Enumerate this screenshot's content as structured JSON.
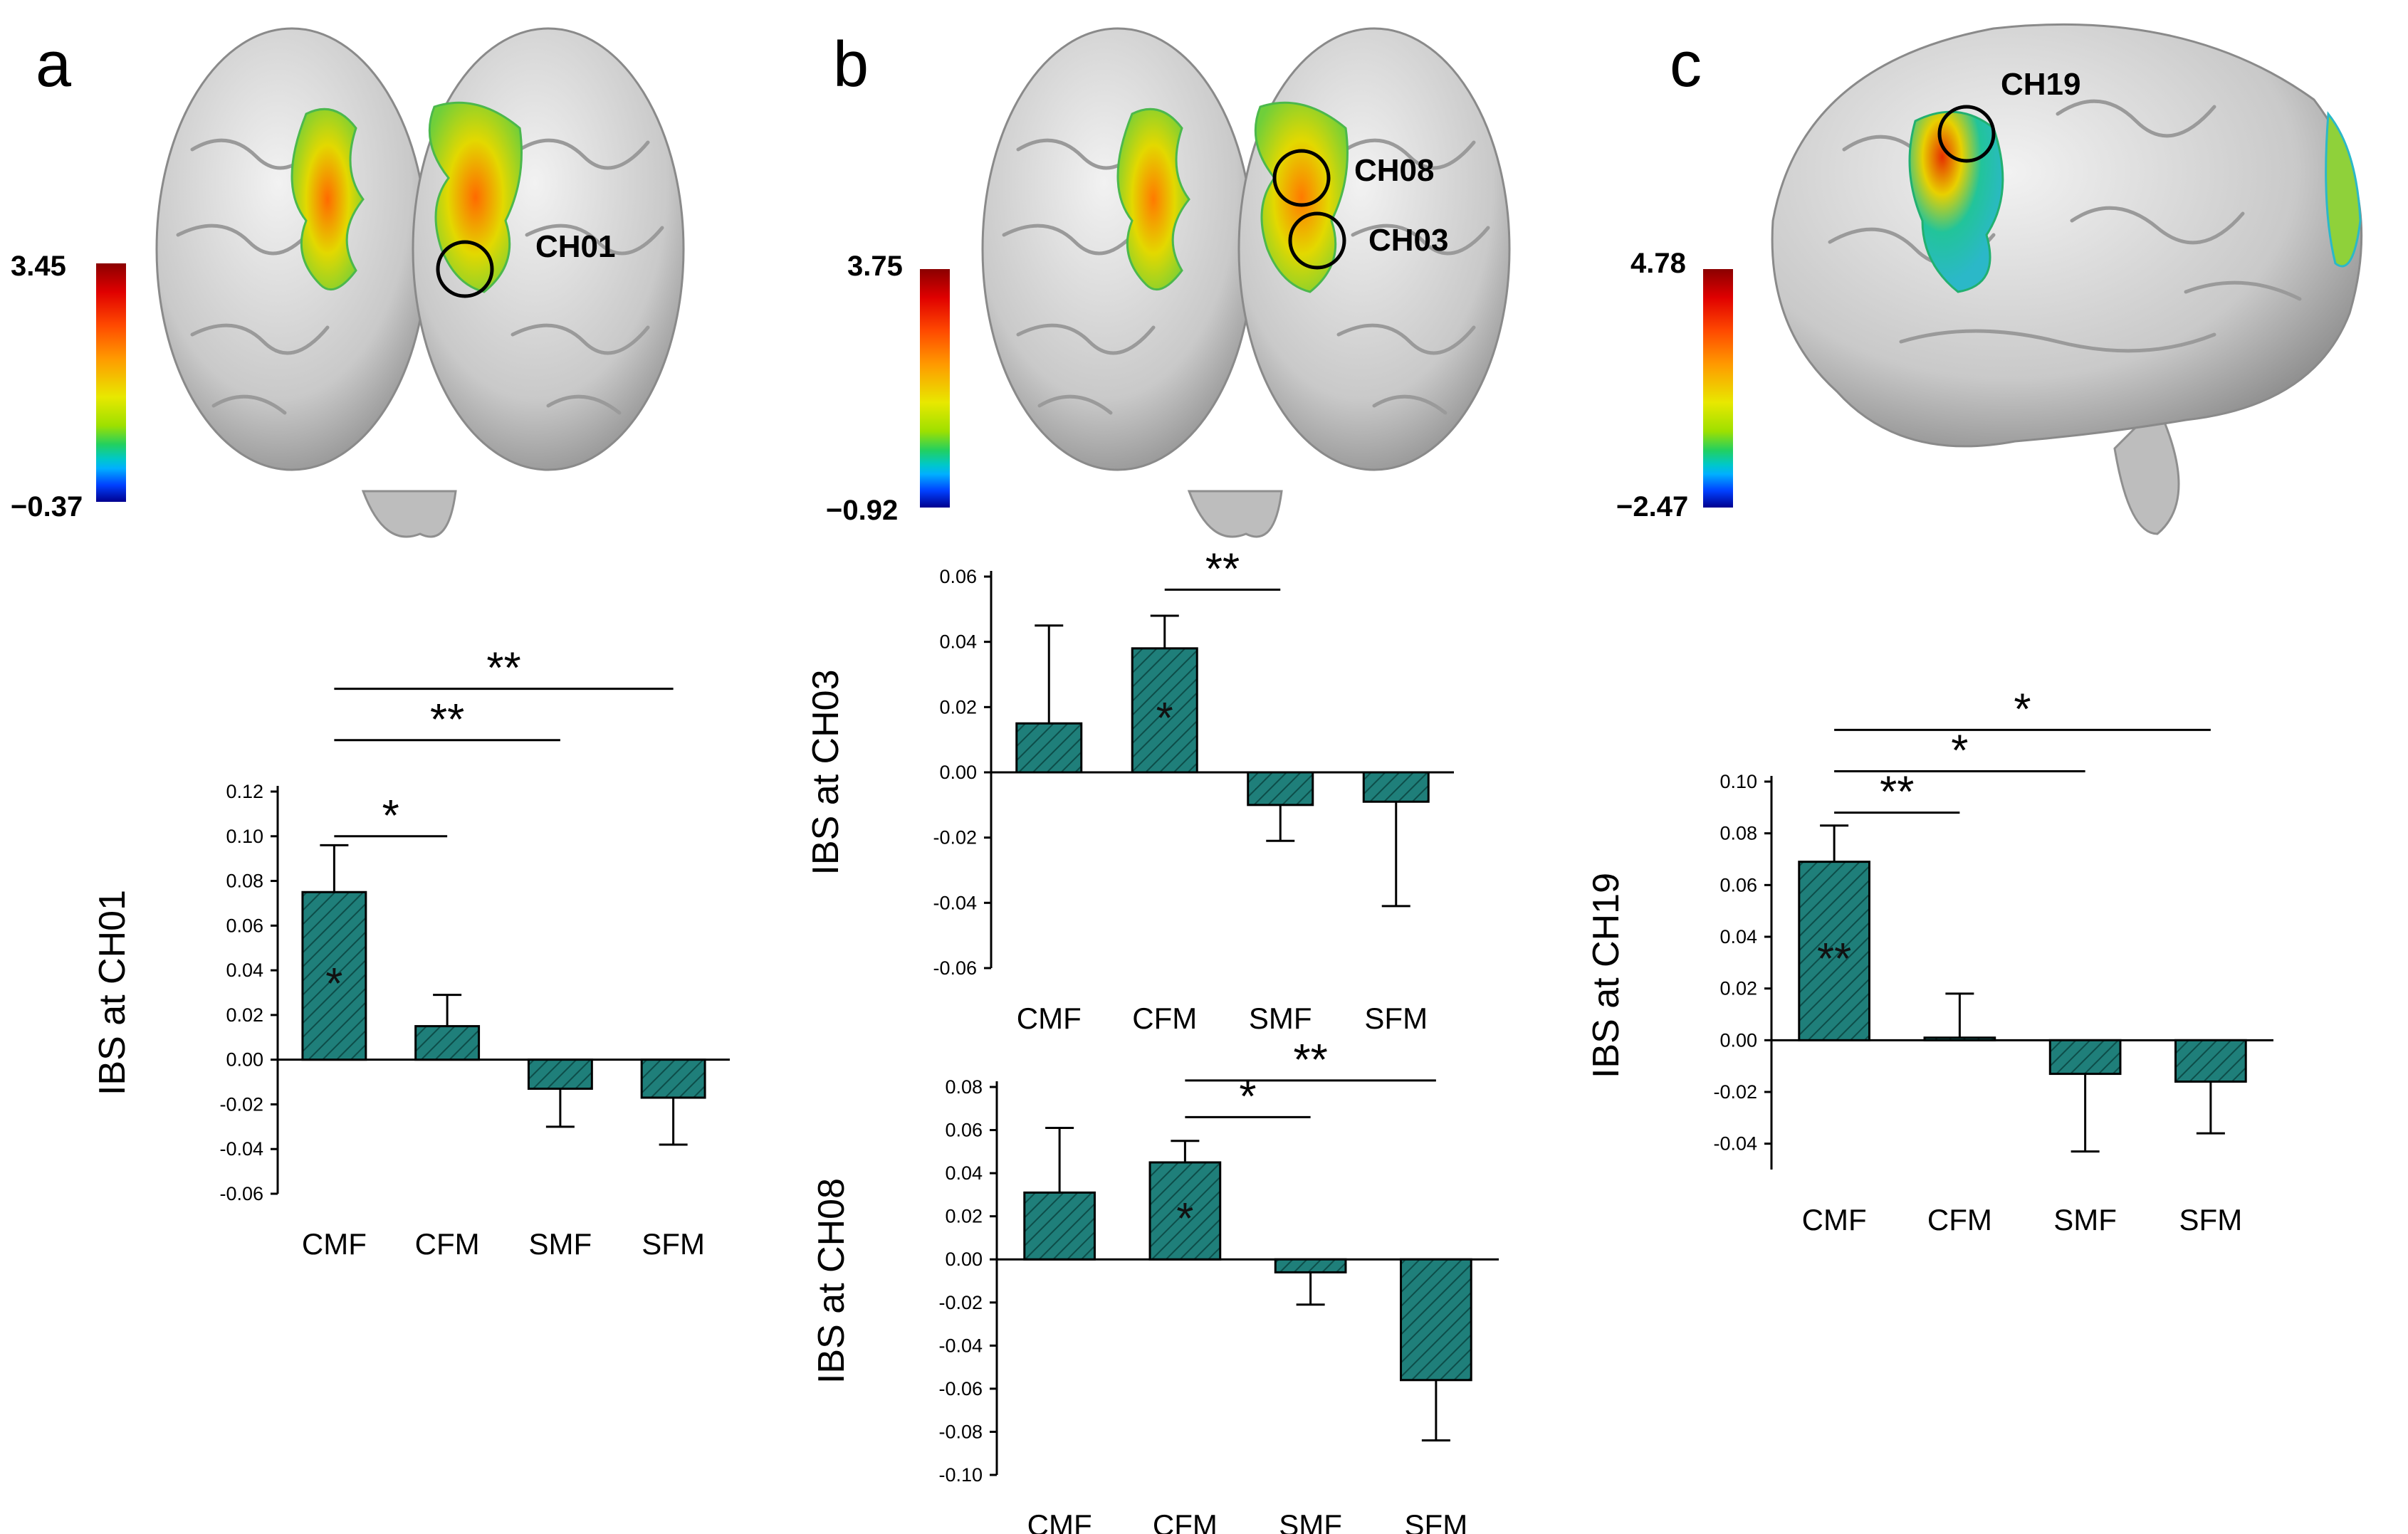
{
  "panels": {
    "a": {
      "letter": "a",
      "colorbar": {
        "max": "3.45",
        "min": "−0.37"
      },
      "channels": [
        "CH01"
      ]
    },
    "b": {
      "letter": "b",
      "colorbar": {
        "max": "3.75",
        "min": "−0.92"
      },
      "channels": [
        "CH08",
        "CH03"
      ]
    },
    "c": {
      "letter": "c",
      "colorbar": {
        "max": "4.78",
        "min": "−2.47"
      },
      "channels": [
        "CH19"
      ]
    }
  },
  "colors": {
    "bar_fill": "#1f7f7a",
    "bar_hatch": "#0d4d49"
  },
  "chart_data": [
    {
      "id": "ch01",
      "type": "bar",
      "ylabel": "IBS at CH01",
      "categories": [
        "CMF",
        "CFM",
        "SMF",
        "SFM"
      ],
      "values": [
        0.075,
        0.015,
        -0.013,
        -0.017
      ],
      "errors": [
        0.021,
        0.014,
        0.017,
        0.021
      ],
      "ylim": [
        -0.06,
        0.12
      ],
      "yticks": [
        0.12,
        0.1,
        0.08,
        0.06,
        0.04,
        0.02,
        0.0,
        -0.02,
        -0.04,
        -0.06
      ],
      "ytick_labels": [
        "0.12",
        "0.10",
        "0.08",
        "0.06",
        "0.04",
        "0.02",
        "0.00",
        "-0.02",
        "-0.04",
        "-0.06"
      ],
      "bar_labels": [
        "*",
        "",
        "",
        ""
      ],
      "brackets": [
        {
          "from": 0,
          "to": 1,
          "y": 0.1,
          "label": "*"
        },
        {
          "from": 0,
          "to": 2,
          "y": 0.143,
          "label": "**"
        },
        {
          "from": 0,
          "to": 3,
          "y": 0.166,
          "label": "**"
        }
      ]
    },
    {
      "id": "ch03",
      "type": "bar",
      "ylabel": "IBS at CH03",
      "categories": [
        "CMF",
        "CFM",
        "SMF",
        "SFM"
      ],
      "values": [
        0.015,
        0.038,
        -0.01,
        -0.009
      ],
      "errors": [
        0.03,
        0.01,
        0.011,
        0.032
      ],
      "ylim": [
        -0.06,
        0.06
      ],
      "yticks": [
        0.06,
        0.04,
        0.02,
        0.0,
        -0.02,
        -0.04,
        -0.06
      ],
      "ytick_labels": [
        "0.06",
        "0.04",
        "0.02",
        "0.00",
        "-0.02",
        "-0.04",
        "-0.06"
      ],
      "bar_labels": [
        "",
        "*",
        "",
        ""
      ],
      "brackets": [
        {
          "from": 1,
          "to": 2,
          "y": 0.056,
          "label": "**"
        }
      ]
    },
    {
      "id": "ch08",
      "type": "bar",
      "ylabel": "IBS at CH08",
      "categories": [
        "CMF",
        "CFM",
        "SMF",
        "SFM"
      ],
      "values": [
        0.031,
        0.045,
        -0.006,
        -0.056
      ],
      "errors": [
        0.03,
        0.01,
        0.015,
        0.028
      ],
      "ylim": [
        -0.1,
        0.08
      ],
      "yticks": [
        0.08,
        0.06,
        0.04,
        0.02,
        0.0,
        -0.02,
        -0.04,
        -0.06,
        -0.08,
        -0.1
      ],
      "ytick_labels": [
        "0.08",
        "0.06",
        "0.04",
        "0.02",
        "0.00",
        "-0.02",
        "-0.04",
        "-0.06",
        "-0.08",
        "-0.10"
      ],
      "bar_labels": [
        "",
        "*",
        "",
        ""
      ],
      "brackets": [
        {
          "from": 1,
          "to": 2,
          "y": 0.066,
          "label": "*"
        },
        {
          "from": 1,
          "to": 3,
          "y": 0.083,
          "label": "**"
        }
      ]
    },
    {
      "id": "ch19",
      "type": "bar",
      "ylabel": "IBS at CH19",
      "categories": [
        "CMF",
        "CFM",
        "SMF",
        "SFM"
      ],
      "values": [
        0.069,
        0.001,
        -0.013,
        -0.016
      ],
      "errors": [
        0.014,
        0.017,
        0.03,
        0.02
      ],
      "ylim": [
        -0.05,
        0.1
      ],
      "yticks": [
        0.1,
        0.08,
        0.06,
        0.04,
        0.02,
        0.0,
        -0.02,
        -0.04
      ],
      "ytick_labels": [
        "0.10",
        "0.08",
        "0.06",
        "0.04",
        "0.02",
        "0.00",
        "-0.02",
        "-0.04"
      ],
      "bar_labels": [
        "**",
        "",
        "",
        ""
      ],
      "brackets": [
        {
          "from": 0,
          "to": 1,
          "y": 0.088,
          "label": "**"
        },
        {
          "from": 0,
          "to": 2,
          "y": 0.104,
          "label": "*"
        },
        {
          "from": 0,
          "to": 3,
          "y": 0.12,
          "label": "*"
        }
      ]
    }
  ]
}
